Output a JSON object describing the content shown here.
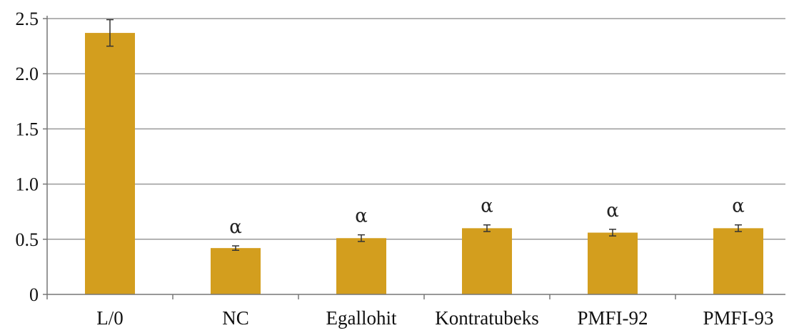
{
  "chart_data": {
    "type": "bar",
    "title": "",
    "xlabel": "",
    "ylabel": "",
    "categories": [
      "L/0",
      "NC",
      "Egallohit",
      "Kontratubeks",
      "PMFI-92",
      "PMFI-93"
    ],
    "values": [
      2.37,
      0.42,
      0.51,
      0.6,
      0.56,
      0.6
    ],
    "errors": [
      0.12,
      0.02,
      0.03,
      0.03,
      0.03,
      0.03
    ],
    "annotations": [
      "",
      "α",
      "α",
      "α",
      "α",
      "α"
    ],
    "ylim": [
      0,
      2.5
    ],
    "yticks": [
      0,
      0.5,
      1.0,
      1.5,
      2.0,
      2.5
    ],
    "ytick_labels": [
      "0",
      "0.5",
      "1.0",
      "1.5",
      "2.0",
      "2.5"
    ],
    "grid": true,
    "legend": "none",
    "colors": {
      "bar": "#D39E1E",
      "grid": "#9a9a9a",
      "error": "#333333"
    }
  }
}
